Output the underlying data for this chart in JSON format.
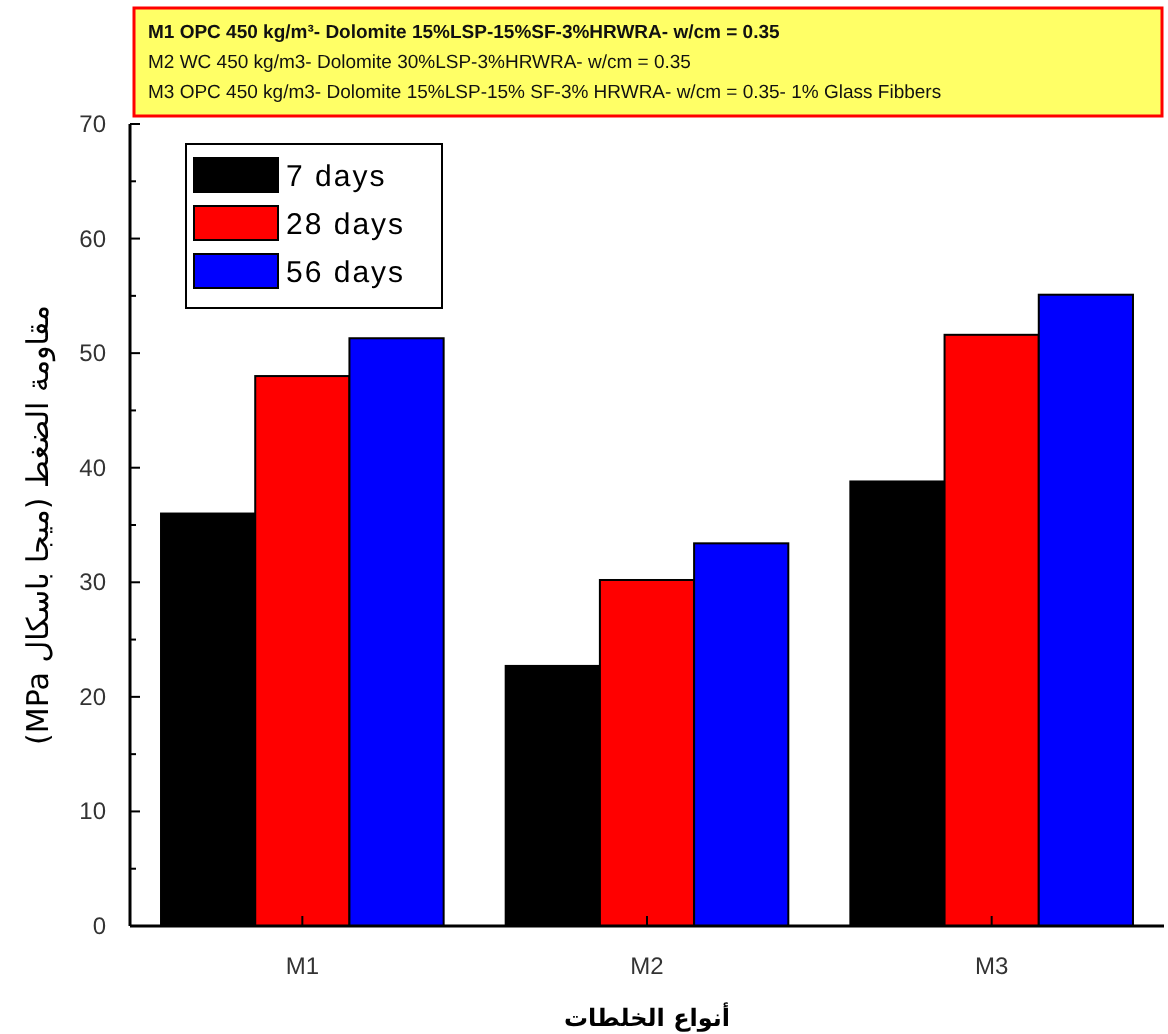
{
  "chart_data": {
    "type": "bar",
    "categories": [
      "M1",
      "M2",
      "M3"
    ],
    "series": [
      {
        "name": "7 days",
        "color": "#000000",
        "values": [
          36,
          22.7,
          38.8
        ]
      },
      {
        "name": "28 days",
        "color": "#ff0000",
        "values": [
          48,
          30.2,
          51.6
        ]
      },
      {
        "name": "56 days",
        "color": "#0000ff",
        "values": [
          51.3,
          33.4,
          55.1
        ]
      }
    ],
    "ylim": [
      0,
      70
    ],
    "yticks": [
      0,
      10,
      20,
      30,
      40,
      50,
      60,
      70
    ],
    "ylabel": "مقاومة الضغط (ميجا باسكال MPa)",
    "xlabel": "أنواع الخلطات",
    "annotations": [
      "M1 OPC 450 kg/m³- Dolomite 15%LSP-15%SF-3%HRWRA- w/cm = 0.35",
      "M2 WC 450 kg/m3- Dolomite 30%LSP-3%HRWRA- w/cm = 0.35",
      "M3 OPC 450 kg/m3- Dolomite 15%LSP-15% SF-3% HRWRA- w/cm = 0.35- 1% Glass Fibbers"
    ],
    "legend": "top left",
    "grid": false
  }
}
